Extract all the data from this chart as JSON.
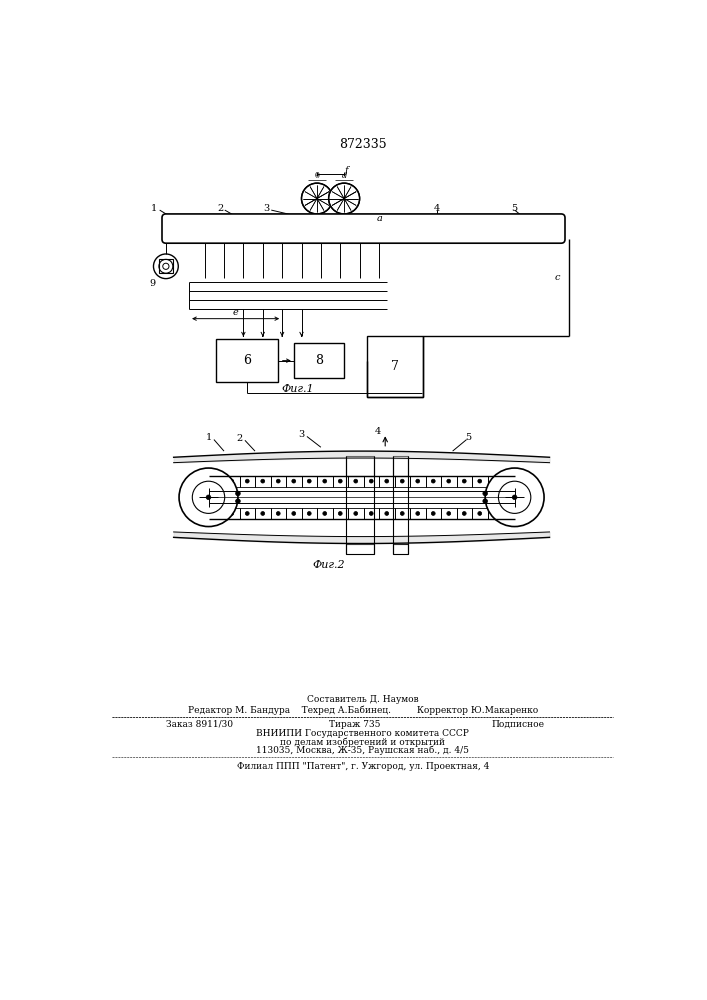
{
  "patent_number": "872335",
  "fig1_label": "Фиг.1",
  "fig2_label": "Фиг.2",
  "background": "#ffffff"
}
